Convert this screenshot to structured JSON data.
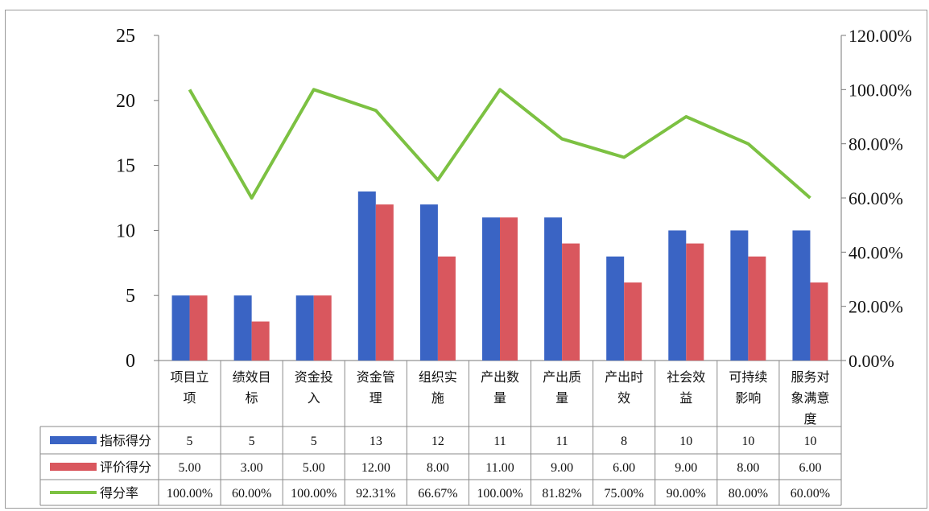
{
  "chart_data": {
    "type": "bar",
    "categories": [
      "项目立项",
      "绩效目标",
      "资金投入",
      "资金管理",
      "组织实施",
      "产出数量",
      "产出质量",
      "产出时效",
      "社会效益",
      "可持续影响",
      "服务对象满意度"
    ],
    "category_lines": [
      [
        "项目立",
        "项"
      ],
      [
        "绩效目",
        "标"
      ],
      [
        "资金投",
        "入"
      ],
      [
        "资金管",
        "理"
      ],
      [
        "组织实",
        "施"
      ],
      [
        "产出数",
        "量"
      ],
      [
        "产出质",
        "量"
      ],
      [
        "产出时",
        "效"
      ],
      [
        "社会效",
        "益"
      ],
      [
        "可持续",
        "影响"
      ],
      [
        "服务对",
        "象满意",
        "度"
      ]
    ],
    "series": [
      {
        "name": "指标得分",
        "type": "bar",
        "axis": "left",
        "color": "#3a64c4",
        "values": [
          5,
          5,
          5,
          13,
          12,
          11,
          11,
          8,
          10,
          10,
          10
        ],
        "table_text": [
          "5",
          "5",
          "5",
          "13",
          "12",
          "11",
          "11",
          "8",
          "10",
          "10",
          "10"
        ]
      },
      {
        "name": "评价得分",
        "type": "bar",
        "axis": "left",
        "color": "#d9575e",
        "values": [
          5,
          3,
          5,
          12,
          8,
          11,
          9,
          6,
          9,
          8,
          6
        ],
        "table_text": [
          "5.00",
          "3.00",
          "5.00",
          "12.00",
          "8.00",
          "11.00",
          "9.00",
          "6.00",
          "9.00",
          "8.00",
          "6.00"
        ]
      },
      {
        "name": "得分率",
        "type": "line",
        "axis": "right",
        "color": "#7cc142",
        "values": [
          100.0,
          60.0,
          100.0,
          92.31,
          66.67,
          100.0,
          81.82,
          75.0,
          90.0,
          80.0,
          60.0
        ],
        "table_text": [
          "100.00%",
          "60.00%",
          "100.00%",
          "92.31%",
          "66.67%",
          "100.00%",
          "81.82%",
          "75.00%",
          "90.00%",
          "80.00%",
          "60.00%"
        ]
      }
    ],
    "y_left": {
      "ylim": [
        0,
        25
      ],
      "ticks": [
        "0",
        "5",
        "10",
        "15",
        "20",
        "25"
      ]
    },
    "y_right": {
      "ylim": [
        0,
        120
      ],
      "ticks": [
        "0.00%",
        "20.00%",
        "40.00%",
        "60.00%",
        "80.00%",
        "100.00%",
        "120.00%"
      ]
    },
    "grid": false,
    "legend": "data-table"
  }
}
